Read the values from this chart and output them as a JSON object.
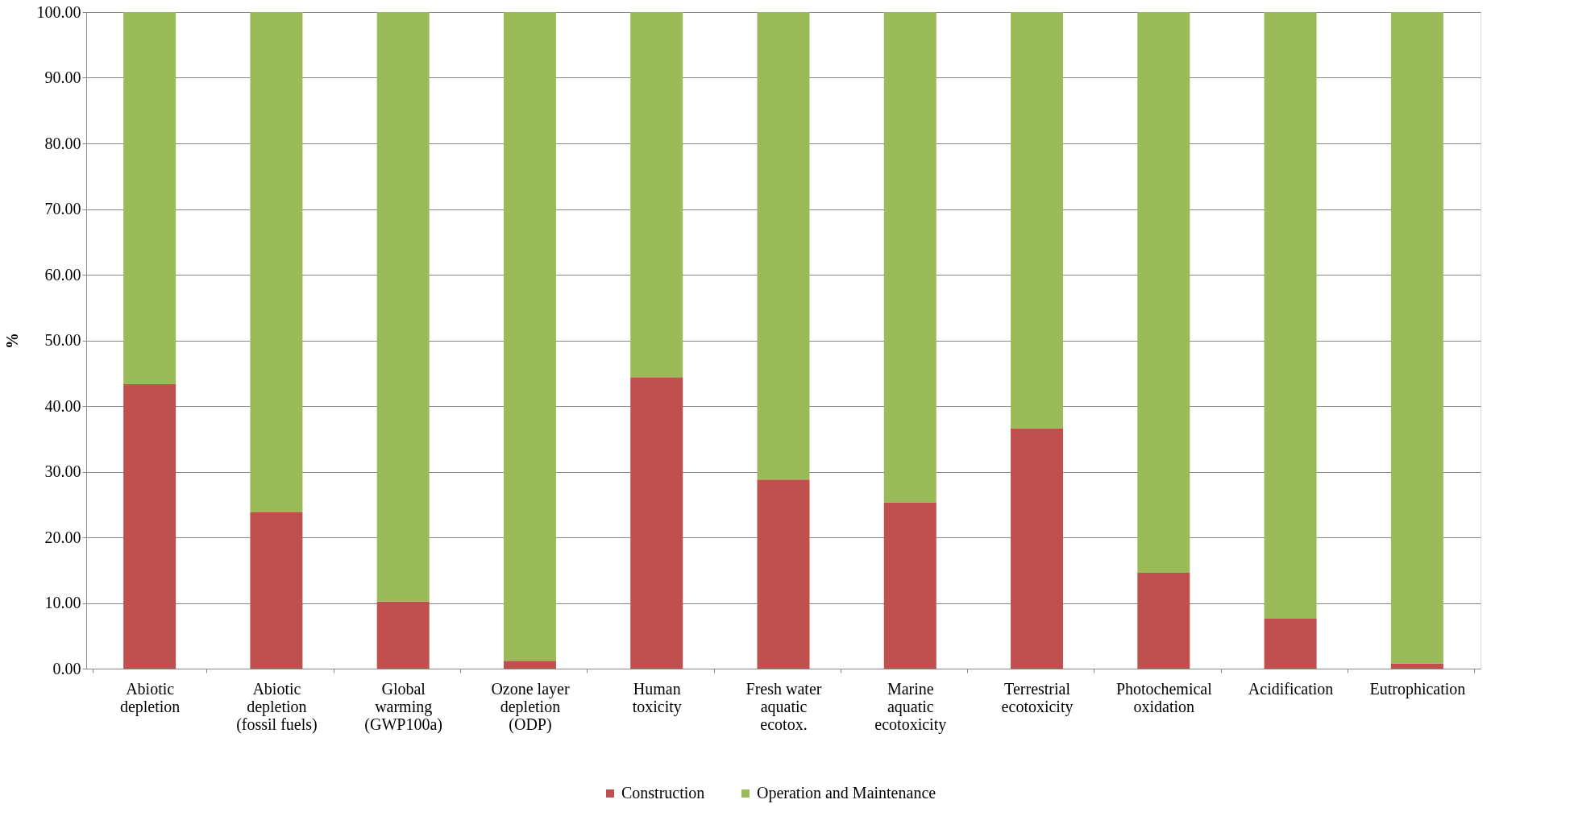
{
  "chart_data": {
    "type": "bar",
    "stacked": true,
    "ylabel": "%",
    "categories": [
      "Abiotic\ndepletion",
      "Abiotic\ndepletion\n(fossil fuels)",
      "Global\nwarming\n(GWP100a)",
      "Ozone layer\ndepletion\n(ODP)",
      "Human\ntoxicity",
      "Fresh water\naquatic\necotox.",
      "Marine\naquatic\necotoxicity",
      "Terrestrial\necotoxicity",
      "Photochemical\noxidation",
      "Acidification",
      "Eutrophication"
    ],
    "series": [
      {
        "name": "Construction",
        "color": "#c0504d",
        "values": [
          43.3,
          23.8,
          10.2,
          1.2,
          44.4,
          28.8,
          25.3,
          36.6,
          14.6,
          7.6,
          0.8
        ]
      },
      {
        "name": "Operation and Maintenance",
        "color": "#9bbb59",
        "values": [
          56.7,
          76.2,
          89.8,
          98.8,
          55.6,
          71.2,
          74.7,
          63.4,
          85.4,
          92.4,
          99.2
        ]
      }
    ],
    "ylim": [
      0,
      100
    ],
    "yticks": [
      {
        "value": 0,
        "label": "0.00"
      },
      {
        "value": 10,
        "label": "10.00"
      },
      {
        "value": 20,
        "label": "20.00"
      },
      {
        "value": 30,
        "label": "30.00"
      },
      {
        "value": 40,
        "label": "40.00"
      },
      {
        "value": 50,
        "label": "50.00"
      },
      {
        "value": 60,
        "label": "60.00"
      },
      {
        "value": 70,
        "label": "70.00"
      },
      {
        "value": 80,
        "label": "80.00"
      },
      {
        "value": 90,
        "label": "90.00"
      },
      {
        "value": 100,
        "label": "100.00"
      }
    ],
    "grid": "y",
    "legend": "bottom"
  }
}
